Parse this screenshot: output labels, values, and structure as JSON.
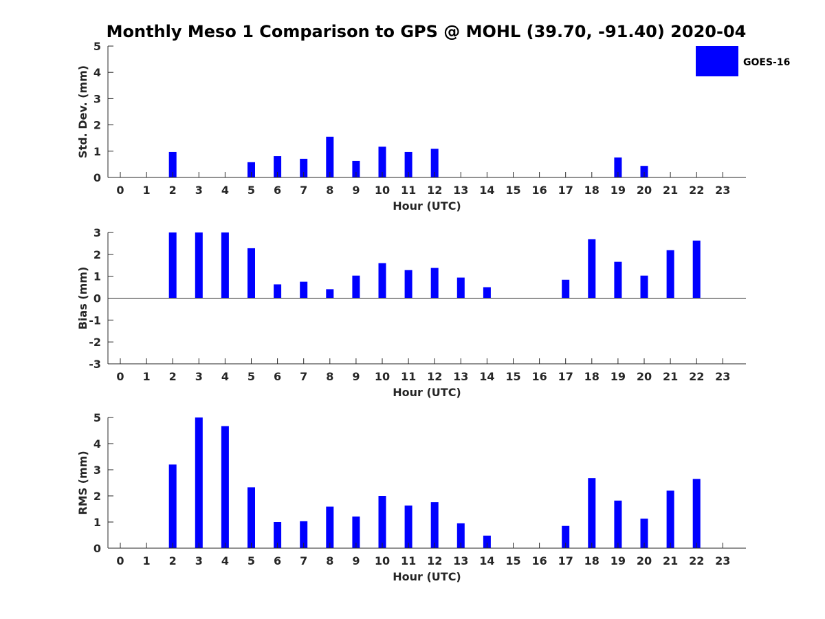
{
  "title": "Monthly Meso 1 Comparison to GPS @ MOHL (39.70, -91.40) 2020-04",
  "colors": {
    "bar": "#0000ff",
    "axis": "#262626"
  },
  "legend": {
    "label": "GOES-16",
    "placement": "top-right"
  },
  "chart_data": [
    {
      "type": "bar",
      "panel": "std-dev",
      "categories": [
        "0",
        "1",
        "2",
        "3",
        "4",
        "5",
        "6",
        "7",
        "8",
        "9",
        "10",
        "11",
        "12",
        "13",
        "14",
        "15",
        "16",
        "17",
        "18",
        "19",
        "20",
        "21",
        "22",
        "23"
      ],
      "series": [
        {
          "name": "GOES-16",
          "values": [
            null,
            null,
            0.97,
            null,
            null,
            0.58,
            0.81,
            0.71,
            1.55,
            0.63,
            1.17,
            0.97,
            1.09,
            null,
            null,
            null,
            null,
            null,
            null,
            0.76,
            0.44,
            null,
            null,
            null
          ]
        }
      ],
      "xlabel": "Hour (UTC)",
      "ylabel": "Std. Dev. (mm)",
      "ylim": [
        0,
        5
      ],
      "yticks": [
        "0",
        "1",
        "2",
        "3",
        "4",
        "5"
      ]
    },
    {
      "type": "bar",
      "panel": "bias",
      "categories": [
        "0",
        "1",
        "2",
        "3",
        "4",
        "5",
        "6",
        "7",
        "8",
        "9",
        "10",
        "11",
        "12",
        "13",
        "14",
        "15",
        "16",
        "17",
        "18",
        "19",
        "20",
        "21",
        "22",
        "23"
      ],
      "series": [
        {
          "name": "GOES-16",
          "values": [
            null,
            null,
            3.0,
            3.0,
            3.0,
            2.28,
            0.63,
            0.75,
            0.41,
            1.03,
            1.6,
            1.28,
            1.38,
            0.94,
            0.5,
            null,
            null,
            0.84,
            2.69,
            1.66,
            1.03,
            2.19,
            2.63,
            null
          ]
        }
      ],
      "xlabel": "Hour (UTC)",
      "ylabel": "Bias (mm)",
      "ylim": [
        -3,
        3
      ],
      "yticks": [
        "-3",
        "-2",
        "-1",
        "0",
        "1",
        "2",
        "3"
      ]
    },
    {
      "type": "bar",
      "panel": "rms",
      "categories": [
        "0",
        "1",
        "2",
        "3",
        "4",
        "5",
        "6",
        "7",
        "8",
        "9",
        "10",
        "11",
        "12",
        "13",
        "14",
        "15",
        "16",
        "17",
        "18",
        "19",
        "20",
        "21",
        "22",
        "23"
      ],
      "series": [
        {
          "name": "GOES-16",
          "values": [
            null,
            null,
            3.2,
            5.0,
            4.67,
            2.33,
            1.0,
            1.03,
            1.59,
            1.21,
            2.0,
            1.63,
            1.76,
            0.95,
            0.48,
            null,
            null,
            0.85,
            2.68,
            1.82,
            1.13,
            2.2,
            2.65,
            null
          ]
        }
      ],
      "xlabel": "Hour (UTC)",
      "ylabel": "RMS (mm)",
      "ylim": [
        0,
        5
      ],
      "yticks": [
        "0",
        "1",
        "2",
        "3",
        "4",
        "5"
      ]
    }
  ]
}
